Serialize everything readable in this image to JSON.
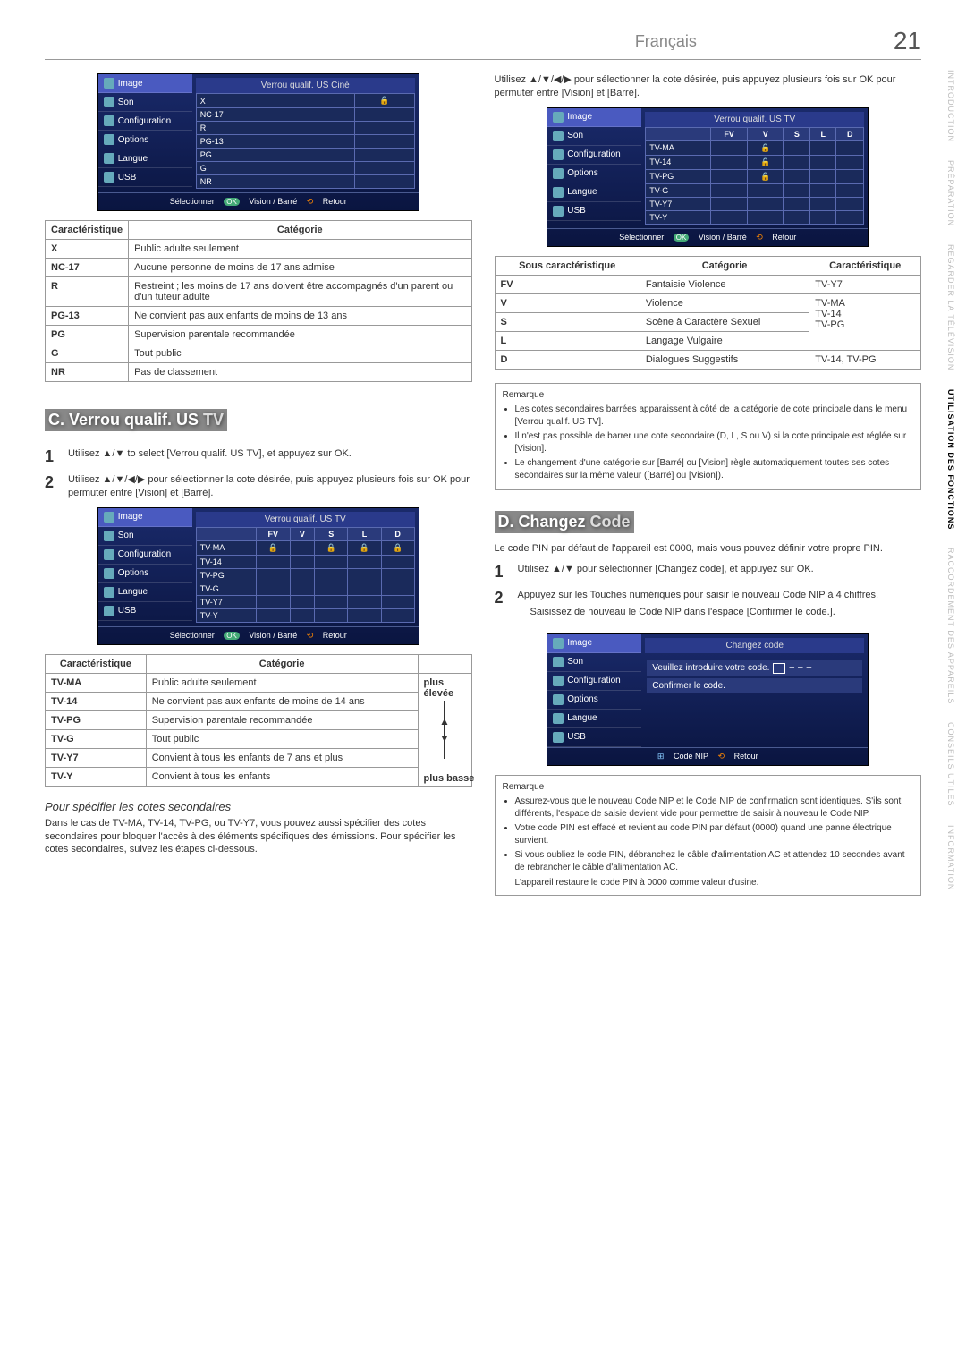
{
  "header": {
    "language": "Français",
    "page_number": "21"
  },
  "side_tabs": [
    "INTRODUCTION",
    "PRÉPARATION",
    "REGARDER LA TÉLÉVISION",
    "UTILISATION DES FONCTIONS",
    "RACCORDEMENT DES APPAREILS",
    "CONSEILS UTILES",
    "INFORMATION"
  ],
  "side_tab_active_index": 3,
  "menu_cine": {
    "title": "Verrou qualif. US Ciné",
    "side_items": [
      "Image",
      "Son",
      "Configuration",
      "Options",
      "Langue",
      "USB"
    ],
    "rows": [
      "X",
      "NC-17",
      "R",
      "PG-13",
      "PG",
      "G",
      "NR"
    ],
    "x_locked": true,
    "footer": {
      "select": "Sélectionner",
      "ok": "OK",
      "cycle": "Vision / Barré",
      "back": "Retour"
    }
  },
  "table_cine": {
    "headers": [
      "Caractéristique",
      "Catégorie"
    ],
    "rows": [
      [
        "X",
        "Public adulte seulement"
      ],
      [
        "NC-17",
        "Aucune personne de moins de 17 ans admise"
      ],
      [
        "R",
        "Restreint ; les moins de 17 ans doivent être accompagnés d'un parent ou d'un tuteur adulte"
      ],
      [
        "PG-13",
        "Ne convient pas aux enfants de moins de 13 ans"
      ],
      [
        "PG",
        "Supervision parentale recommandée"
      ],
      [
        "G",
        "Tout public"
      ],
      [
        "NR",
        "Pas de classement"
      ]
    ]
  },
  "section_c": {
    "title_prefix": "C. Verrou qualif. US",
    "title_suffix": "TV",
    "steps": [
      "Utilisez ▲/▼ to select [Verrou qualif. US TV], et appuyez sur OK.",
      "Utilisez ▲/▼/◀/▶ pour sélectionner la cote désirée, puis appuyez plusieurs fois sur OK pour permuter entre [Vision] et [Barré]."
    ]
  },
  "menu_tv1": {
    "title": "Verrou qualif. US TV",
    "cols": [
      "",
      "FV",
      "V",
      "S",
      "L",
      "D"
    ],
    "rows": [
      "TV-MA",
      "TV-14",
      "TV-PG",
      "TV-G",
      "TV-Y7",
      "TV-Y"
    ]
  },
  "table_tv": {
    "headers": [
      "Caractéristique",
      "Catégorie",
      ""
    ],
    "arrow_top": "plus élevée",
    "arrow_bottom": "plus basse",
    "rows": [
      [
        "TV-MA",
        "Public adulte seulement"
      ],
      [
        "TV-14",
        "Ne convient pas aux enfants de moins de 14 ans"
      ],
      [
        "TV-PG",
        "Supervision parentale recommandée"
      ],
      [
        "TV-G",
        "Tout public"
      ],
      [
        "TV-Y7",
        "Convient à tous les enfants de 7 ans et plus"
      ],
      [
        "TV-Y",
        "Convient à tous les enfants"
      ]
    ]
  },
  "secondary": {
    "subhead": "Pour spécifier les cotes secondaires",
    "para": "Dans le cas de TV-MA, TV-14, TV-PG, ou TV-Y7, vous pouvez aussi spécifier des cotes secondaires pour bloquer l'accès à des éléments spécifiques des émissions. Pour spécifier les cotes secondaires, suivez les étapes ci-dessous."
  },
  "right_intro": "Utilisez ▲/▼/◀/▶ pour sélectionner la cote désirée, puis appuyez plusieurs fois sur OK pour permuter entre [Vision] et [Barré].",
  "menu_tv2": {
    "title": "Verrou qualif. US TV",
    "cols": [
      "",
      "FV",
      "V",
      "S",
      "L",
      "D"
    ],
    "rows": [
      "TV-MA",
      "TV-14",
      "TV-PG",
      "TV-G",
      "TV-Y7",
      "TV-Y"
    ]
  },
  "table_sub": {
    "headers": [
      "Sous caractéristique",
      "Catégorie",
      "Caractéristique"
    ],
    "rows": [
      [
        "FV",
        "Fantaisie Violence",
        "TV-Y7"
      ],
      [
        "V",
        "Violence",
        ""
      ],
      [
        "S",
        "Scène à Caractère Sexuel",
        ""
      ],
      [
        "L",
        "Langage Vulgaire",
        ""
      ],
      [
        "D",
        "Dialogues Suggestifs",
        "TV-14, TV-PG"
      ]
    ],
    "merged_right": "TV-MA\nTV-14\nTV-PG"
  },
  "remark1": {
    "title": "Remarque",
    "items": [
      "Les cotes secondaires barrées apparaissent à côté de la catégorie de cote principale dans le menu [Verrou qualif. US TV].",
      "Il n'est pas possible de barrer une cote secondaire (D, L, S ou V) si la cote principale est réglée sur [Vision].",
      "Le changement d'une catégorie sur [Barré] ou [Vision] règle automatiquement toutes ses cotes secondaires sur la même valeur ([Barré] ou [Vision])."
    ]
  },
  "section_d": {
    "title_prefix": "D. Changez",
    "title_suffix": "Code",
    "para": "Le code PIN par défaut de l'appareil est 0000, mais vous pouvez définir votre propre PIN.",
    "steps": [
      "Utilisez ▲/▼ pour sélectionner [Changez code], et appuyez sur OK.",
      "Appuyez sur les Touches numériques pour saisir le nouveau Code NIP à 4 chiffres."
    ],
    "bullet": "Saisissez de nouveau le Code NIP dans l'espace [Confirmer le code.]."
  },
  "menu_code": {
    "title": "Changez code",
    "line1": "Veuillez introduire votre code.",
    "line2": "Confirmer le code.",
    "footer": {
      "nip": "Code NIP",
      "back": "Retour"
    }
  },
  "remark2": {
    "title": "Remarque",
    "items": [
      "Assurez-vous que le nouveau Code NIP et le Code NIP de confirmation sont identiques. S'ils sont différents, l'espace de saisie devient vide pour permettre de saisir à nouveau le Code NIP.",
      "Votre code PIN est effacé et revient au code PIN par défaut (0000) quand une panne électrique survient.",
      "Si vous oubliez le code PIN, débranchez le câble d'alimentation AC et attendez 10 secondes avant de rebrancher le câble d'alimentation AC."
    ],
    "trailer": "L'appareil restaure le code PIN à 0000 comme valeur d'usine."
  }
}
